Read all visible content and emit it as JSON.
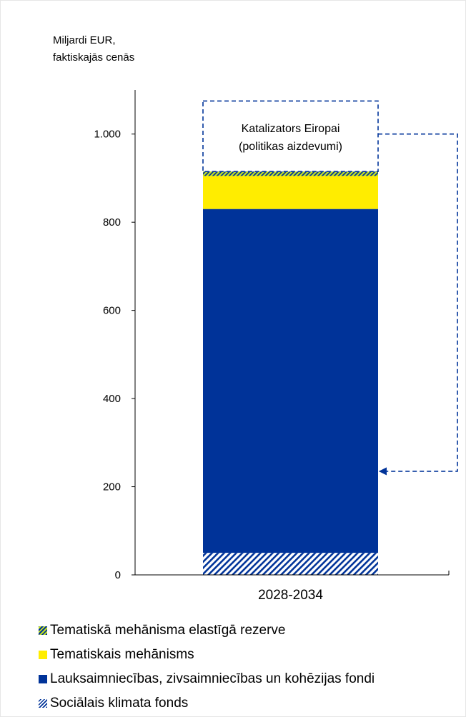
{
  "unit_label": {
    "line1": "Miljardi EUR,",
    "line2": "faktiskajās cenās"
  },
  "chart_data": {
    "type": "bar",
    "stacked": true,
    "categories": [
      "2028-2034"
    ],
    "ylim": [
      0,
      1100
    ],
    "yticks": [
      0,
      200,
      400,
      600,
      800,
      1000
    ],
    "ytick_labels": [
      "0",
      "200",
      "400",
      "600",
      "800",
      "1.000"
    ],
    "grid": false,
    "legend_position": "bottom",
    "series": [
      {
        "name": "Sociālais klimata fonds",
        "values": [
          50
        ],
        "color": "#003399",
        "pattern": "hatch-blue-white"
      },
      {
        "name": "Lauksaimniecības, zivsaimniecības un kohēzijas fondi",
        "values": [
          780
        ],
        "color": "#003399"
      },
      {
        "name": "Tematiskais mehānisms",
        "values": [
          75
        ],
        "color": "#ffed00"
      },
      {
        "name": "Tematiskā mehānisma elastīgā rezerve",
        "values": [
          10
        ],
        "color": "#c8e61e",
        "pattern": "hatch-blue-green"
      }
    ],
    "annotation": {
      "lines": [
        "Katalizators Eiropai",
        "(politikas aizdevumi)"
      ],
      "range": [
        915,
        1075
      ],
      "arrow_to_value": 235,
      "style": "dashed-box"
    }
  },
  "legend_items": [
    {
      "label": "Tematiskā mehānisma elastīgā rezerve",
      "swatch": "hatch-green"
    },
    {
      "label": "Tematiskais mehānisms",
      "swatch": "yellow"
    },
    {
      "label": "Lauksaimniecības, zivsaimniecības un kohēzijas fondi",
      "swatch": "blue"
    },
    {
      "label": "Sociālais klimata fonds",
      "swatch": "hatch-blue"
    }
  ],
  "colors": {
    "eu_blue": "#003399",
    "yellow": "#ffed00",
    "green": "#c8e61e",
    "axis": "#000000",
    "annotation": "#003399"
  }
}
